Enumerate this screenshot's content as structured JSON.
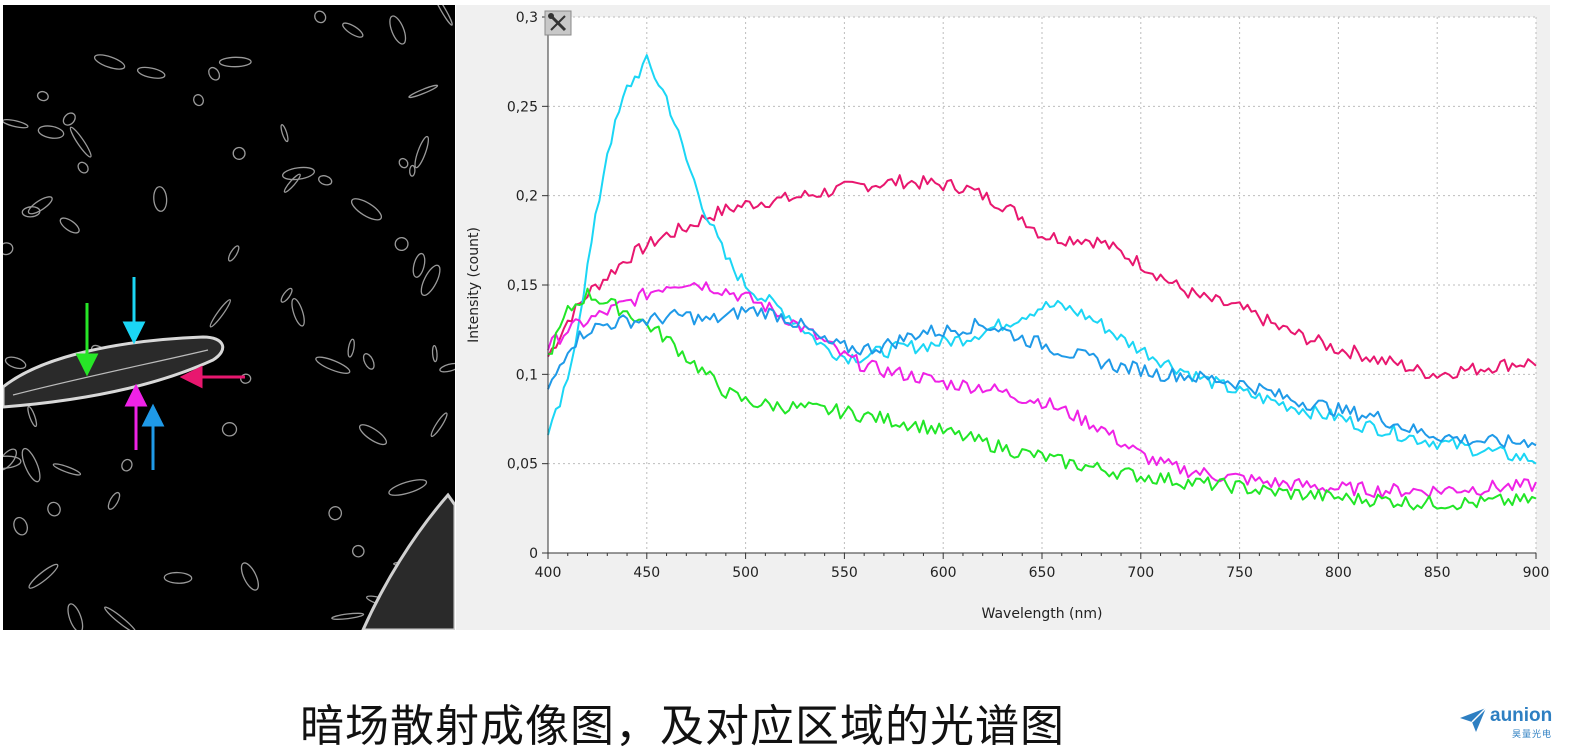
{
  "chart_data": {
    "type": "line",
    "xlabel": "Wavelength (nm)",
    "ylabel": "Intensity (count)",
    "xlim": [
      400,
      900
    ],
    "ylim": [
      0,
      0.3
    ],
    "xticks": [
      "400",
      "450",
      "500",
      "550",
      "600",
      "650",
      "700",
      "750",
      "800",
      "850",
      "900"
    ],
    "xtick_values": [
      400,
      450,
      500,
      550,
      600,
      650,
      700,
      750,
      800,
      850,
      900
    ],
    "yticks": [
      "0",
      "0,05",
      "0,1",
      "0,15",
      "0,2",
      "0,25",
      "0,3"
    ],
    "ytick_values": [
      0,
      0.05,
      0.1,
      0.15,
      0.2,
      0.25,
      0.3
    ],
    "grid": true,
    "legend": "none",
    "series": [
      {
        "color": "#e8176f",
        "x": [
          400,
          410,
          420,
          430,
          440,
          450,
          460,
          470,
          480,
          490,
          500,
          510,
          520,
          530,
          540,
          550,
          560,
          570,
          580,
          590,
          600,
          610,
          620,
          630,
          640,
          650,
          660,
          670,
          680,
          690,
          700,
          710,
          720,
          730,
          740,
          750,
          760,
          770,
          780,
          790,
          800,
          810,
          820,
          830,
          840,
          850,
          860,
          870,
          880,
          890,
          900
        ],
        "y": [
          0.11,
          0.13,
          0.145,
          0.155,
          0.165,
          0.172,
          0.178,
          0.182,
          0.188,
          0.192,
          0.195,
          0.197,
          0.198,
          0.2,
          0.202,
          0.204,
          0.206,
          0.207,
          0.208,
          0.207,
          0.206,
          0.205,
          0.2,
          0.195,
          0.188,
          0.178,
          0.176,
          0.176,
          0.174,
          0.168,
          0.162,
          0.155,
          0.148,
          0.143,
          0.14,
          0.137,
          0.132,
          0.126,
          0.122,
          0.118,
          0.114,
          0.112,
          0.108,
          0.106,
          0.102,
          0.1,
          0.102,
          0.103,
          0.105,
          0.106,
          0.107
        ]
      },
      {
        "color": "#1bd6f5",
        "x": [
          400,
          410,
          420,
          430,
          440,
          450,
          460,
          470,
          480,
          490,
          500,
          510,
          520,
          530,
          540,
          550,
          560,
          570,
          580,
          590,
          600,
          610,
          620,
          630,
          640,
          650,
          660,
          670,
          680,
          690,
          700,
          710,
          720,
          730,
          740,
          750,
          760,
          770,
          780,
          790,
          800,
          810,
          820,
          830,
          840,
          850,
          860,
          870,
          880,
          890,
          900
        ],
        "y": [
          0.065,
          0.095,
          0.16,
          0.225,
          0.26,
          0.275,
          0.255,
          0.22,
          0.19,
          0.165,
          0.15,
          0.142,
          0.135,
          0.125,
          0.115,
          0.11,
          0.11,
          0.113,
          0.115,
          0.116,
          0.118,
          0.12,
          0.124,
          0.128,
          0.133,
          0.138,
          0.138,
          0.134,
          0.128,
          0.12,
          0.114,
          0.108,
          0.103,
          0.098,
          0.094,
          0.09,
          0.087,
          0.084,
          0.081,
          0.078,
          0.076,
          0.072,
          0.07,
          0.067,
          0.064,
          0.062,
          0.06,
          0.058,
          0.056,
          0.054,
          0.052
        ]
      },
      {
        "color": "#ef22e6",
        "x": [
          400,
          410,
          420,
          430,
          440,
          450,
          460,
          470,
          480,
          490,
          500,
          510,
          520,
          530,
          540,
          550,
          560,
          570,
          580,
          590,
          600,
          610,
          620,
          630,
          640,
          650,
          660,
          670,
          680,
          690,
          700,
          710,
          720,
          730,
          740,
          750,
          760,
          770,
          780,
          790,
          800,
          810,
          820,
          830,
          840,
          850,
          860,
          870,
          880,
          890,
          900
        ],
        "y": [
          0.115,
          0.125,
          0.13,
          0.135,
          0.14,
          0.145,
          0.15,
          0.152,
          0.15,
          0.147,
          0.143,
          0.138,
          0.132,
          0.125,
          0.118,
          0.11,
          0.105,
          0.102,
          0.1,
          0.098,
          0.095,
          0.094,
          0.093,
          0.09,
          0.087,
          0.085,
          0.08,
          0.075,
          0.07,
          0.062,
          0.055,
          0.05,
          0.047,
          0.045,
          0.043,
          0.042,
          0.04,
          0.039,
          0.038,
          0.037,
          0.036,
          0.036,
          0.035,
          0.035,
          0.035,
          0.035,
          0.036,
          0.036,
          0.037,
          0.037,
          0.038
        ]
      },
      {
        "color": "#22e627",
        "x": [
          400,
          410,
          420,
          430,
          440,
          450,
          460,
          470,
          480,
          490,
          500,
          510,
          520,
          530,
          540,
          550,
          560,
          570,
          580,
          590,
          600,
          610,
          620,
          630,
          640,
          650,
          660,
          670,
          680,
          690,
          700,
          710,
          720,
          730,
          740,
          750,
          760,
          770,
          780,
          790,
          800,
          810,
          820,
          830,
          840,
          850,
          860,
          870,
          880,
          890,
          900
        ],
        "y": [
          0.11,
          0.135,
          0.145,
          0.14,
          0.135,
          0.128,
          0.12,
          0.11,
          0.1,
          0.09,
          0.085,
          0.083,
          0.082,
          0.081,
          0.08,
          0.079,
          0.077,
          0.075,
          0.073,
          0.071,
          0.068,
          0.065,
          0.062,
          0.059,
          0.056,
          0.054,
          0.051,
          0.049,
          0.047,
          0.045,
          0.043,
          0.042,
          0.04,
          0.039,
          0.038,
          0.037,
          0.035,
          0.034,
          0.033,
          0.032,
          0.031,
          0.03,
          0.03,
          0.029,
          0.028,
          0.028,
          0.028,
          0.028,
          0.029,
          0.029,
          0.03
        ]
      },
      {
        "color": "#1f9ae8",
        "x": [
          400,
          410,
          420,
          430,
          440,
          450,
          460,
          470,
          480,
          490,
          500,
          510,
          520,
          530,
          540,
          550,
          560,
          570,
          580,
          590,
          600,
          610,
          620,
          630,
          640,
          650,
          660,
          670,
          680,
          690,
          700,
          710,
          720,
          730,
          740,
          750,
          760,
          770,
          780,
          790,
          800,
          810,
          820,
          830,
          840,
          850,
          860,
          870,
          880,
          890,
          900
        ],
        "y": [
          0.09,
          0.115,
          0.125,
          0.128,
          0.13,
          0.13,
          0.132,
          0.133,
          0.13,
          0.132,
          0.136,
          0.135,
          0.132,
          0.126,
          0.118,
          0.115,
          0.114,
          0.116,
          0.12,
          0.124,
          0.124,
          0.126,
          0.128,
          0.125,
          0.12,
          0.117,
          0.113,
          0.11,
          0.107,
          0.104,
          0.103,
          0.1,
          0.1,
          0.098,
          0.097,
          0.095,
          0.092,
          0.088,
          0.085,
          0.083,
          0.08,
          0.078,
          0.076,
          0.072,
          0.068,
          0.066,
          0.064,
          0.063,
          0.062,
          0.062,
          0.063
        ]
      }
    ]
  },
  "image": {
    "arrow_colors": [
      "#27e627",
      "#1bd6f5",
      "#e8176f",
      "#ef22e6",
      "#1f9ae8"
    ]
  },
  "toolbar": {
    "icon": "wrench-screwdriver-icon"
  },
  "caption": "暗场散射成像图，及对应区域的光谱图",
  "logo": {
    "text": "aunion",
    "sub": "昊量光电",
    "icon": "paper-plane-icon"
  }
}
